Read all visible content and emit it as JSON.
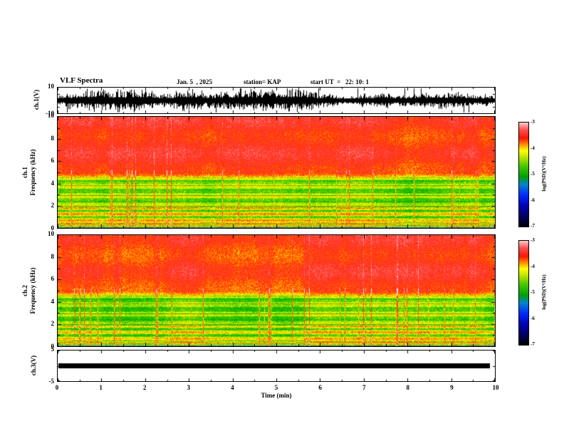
{
  "title": {
    "main": "VLF Spectra",
    "date": "Jan. 5  , 2025",
    "station": "station= KAP",
    "start_ut": "start UT  =   22: 10: 1"
  },
  "x_axis": {
    "label": "Time (min)",
    "ticks": [
      "0",
      "1",
      "2",
      "3",
      "4",
      "5",
      "6",
      "7",
      "8",
      "9",
      "10"
    ],
    "range": [
      0,
      10
    ]
  },
  "panels": {
    "ch1_wave": {
      "ylabel": "ch.1(V)",
      "yticks": [
        "10",
        "-10"
      ],
      "yrange": [
        -10,
        10
      ]
    },
    "spec1": {
      "ylabel_line1": "ch.1",
      "ylabel_line2": "Frequency (kHz)",
      "yticks": [
        "10",
        "8",
        "6",
        "4",
        "2",
        "0"
      ],
      "yrange": [
        0,
        10
      ]
    },
    "spec2": {
      "ylabel_line1": "ch.2",
      "ylabel_line2": "Frequency (kHz)",
      "yticks": [
        "10",
        "8",
        "6",
        "4",
        "2",
        "0"
      ],
      "yrange": [
        0,
        10
      ]
    },
    "ch3_wave": {
      "ylabel": "ch.3(V)",
      "yticks": [
        "5",
        "-5"
      ],
      "yrange": [
        -5,
        5
      ]
    }
  },
  "colorbar": {
    "label": "log(PSD)(V²/Hz)",
    "ticks": [
      "-3",
      "-4",
      "-5",
      "-6",
      "-7"
    ],
    "range": [
      -7,
      -3
    ],
    "gradient": [
      "#ffc8c8 0%",
      "#ff5050 7%",
      "#ff1400 15%",
      "#ff9e00 22%",
      "#ffff00 27%",
      "#b4e100 34%",
      "#46c800 42%",
      "#00a000 52%",
      "#0082d2 60%",
      "#0028ff 70%",
      "#0000b4 80%",
      "#000064 90%",
      "#000000 100%"
    ]
  },
  "chart_data": [
    {
      "type": "line",
      "name": "ch1_waveform",
      "xlabel": "Time (min)",
      "xlim": [
        0,
        10
      ],
      "ylabel": "ch.1(V)",
      "ylim": [
        -10,
        10
      ],
      "description": "continuous broadband noise record; envelope mostly ±4 to ±8 V with frequent spikes reaching ±10 V across the whole 0–10 min interval"
    },
    {
      "type": "heatmap",
      "name": "ch1_spectrogram",
      "xlabel": "Time (min)",
      "xlim": [
        0,
        10
      ],
      "ylabel": "Frequency (kHz)",
      "ylim": [
        0,
        10
      ],
      "zlabel": "log(PSD)(V²/Hz)",
      "zlim": [
        -7,
        -3
      ],
      "band_profile": [
        {
          "f_khz": [
            5,
            10
          ],
          "log_psd_mean": -3.3,
          "appearance": "saturated red with white/pink speckle"
        },
        {
          "f_khz": [
            4,
            5
          ],
          "log_psd_mean": -3.8,
          "appearance": "orange-red transition"
        },
        {
          "f_khz": [
            2,
            4
          ],
          "log_psd_mean": -4.4,
          "appearance": "yellow-green with dark horizontal lines near 2, 3 and 3.9 kHz"
        },
        {
          "f_khz": [
            0,
            2
          ],
          "log_psd_mean": -4.1,
          "appearance": "banded green/yellow layers"
        }
      ],
      "features": [
        "dense vertical sferic striations at all times",
        "horizontal interference lines",
        "dark band at the 0 kHz edge"
      ]
    },
    {
      "type": "heatmap",
      "name": "ch2_spectrogram",
      "xlabel": "Time (min)",
      "xlim": [
        0,
        10
      ],
      "ylabel": "Frequency (kHz)",
      "ylim": [
        0,
        10
      ],
      "zlabel": "log(PSD)(V²/Hz)",
      "zlim": [
        -7,
        -3
      ],
      "band_profile": [
        {
          "f_khz": [
            5,
            10
          ],
          "log_psd_mean": -3.3,
          "appearance": "saturated red with white/pink speckle"
        },
        {
          "f_khz": [
            4,
            5
          ],
          "log_psd_mean": -3.8,
          "appearance": "orange-red transition"
        },
        {
          "f_khz": [
            2,
            4
          ],
          "log_psd_mean": -4.4,
          "appearance": "yellow-green with dark horizontal lines near 2, 3 and 3.9 kHz"
        },
        {
          "f_khz": [
            0,
            2
          ],
          "log_psd_mean": -4.1,
          "appearance": "banded green/yellow layers"
        }
      ],
      "features": [
        "dense vertical sferic striations at all times",
        "horizontal interference lines",
        "dark band at the 0 kHz edge"
      ]
    },
    {
      "type": "line",
      "name": "ch3_waveform",
      "xlabel": "Time (min)",
      "xlim": [
        0,
        10
      ],
      "ylabel": "ch.3(V)",
      "ylim": [
        -5,
        5
      ],
      "values_approx": 0,
      "description": "flat thick black trace at ≈0 V for the entire record (constant/saturated channel)"
    }
  ]
}
